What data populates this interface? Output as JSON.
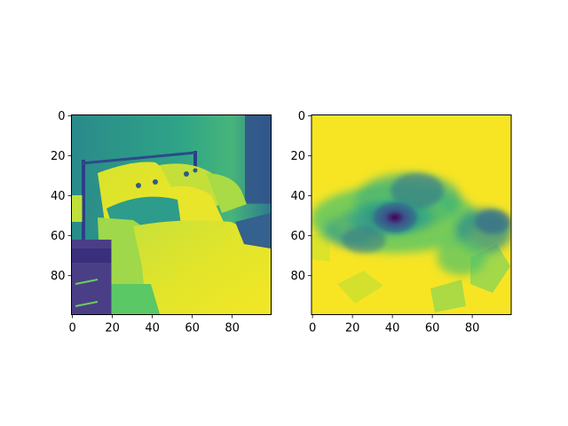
{
  "chart_data": [
    {
      "type": "heatmap",
      "title": "",
      "xlabel": "",
      "ylabel": "",
      "colormap": "viridis",
      "xlim": [
        0,
        100
      ],
      "ylim": [
        100,
        0
      ],
      "x_ticks": [
        0,
        20,
        40,
        60,
        80
      ],
      "y_ticks": [
        0,
        20,
        40,
        60,
        80
      ],
      "x_tick_labels": [
        "0",
        "20",
        "40",
        "60",
        "80"
      ],
      "y_tick_labels": [
        "0",
        "20",
        "40",
        "60",
        "80"
      ],
      "content": "grayscale bedroom photo rendered with viridis colormap"
    },
    {
      "type": "heatmap",
      "title": "",
      "xlabel": "",
      "ylabel": "",
      "colormap": "viridis",
      "xlim": [
        0,
        100
      ],
      "ylim": [
        100,
        0
      ],
      "x_ticks": [
        0,
        20,
        40,
        60,
        80
      ],
      "y_ticks": [
        0,
        20,
        40,
        60,
        80
      ],
      "x_tick_labels": [
        "0",
        "20",
        "40",
        "60",
        "80"
      ],
      "y_tick_labels": [
        "0",
        "20",
        "40",
        "60",
        "80"
      ],
      "content": "attention/saliency map, mostly high values with low-value blob centered near (42, 50)"
    }
  ],
  "colors": {
    "viridis_low": "#440154",
    "viridis_mid": "#21908d",
    "viridis_high": "#fde725"
  }
}
